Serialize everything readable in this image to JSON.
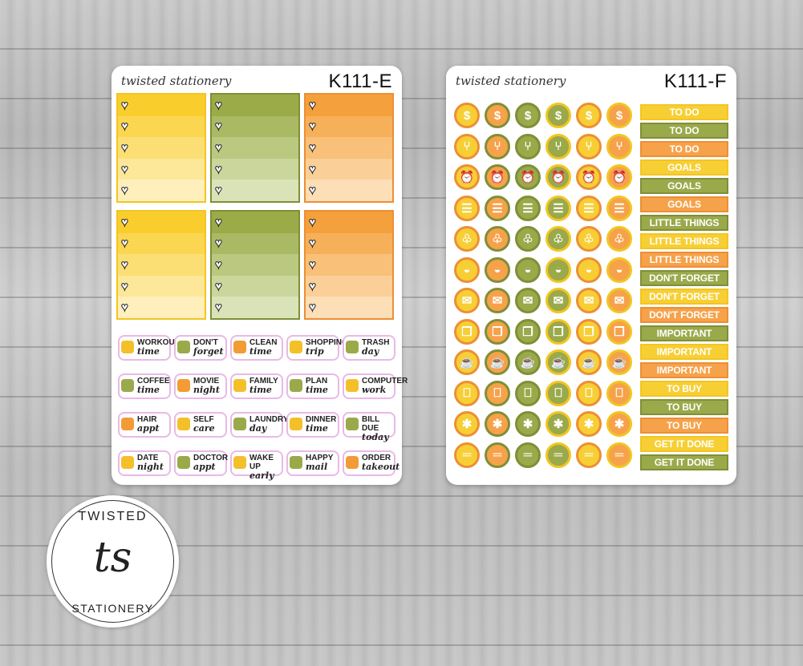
{
  "sheet_e": {
    "brand": "twisted stationery",
    "code": "K111-E",
    "boxes": [
      {
        "color": "yellow"
      },
      {
        "color": "green"
      },
      {
        "color": "orange"
      },
      {
        "color": "yellow"
      },
      {
        "color": "green"
      },
      {
        "color": "orange"
      }
    ],
    "chips": [
      {
        "bold": "WORKOUT",
        "script": "time",
        "icon": "dumbbell-icon"
      },
      {
        "bold": "DON'T",
        "script": "forget",
        "icon": "asterisk-icon"
      },
      {
        "bold": "CLEAN",
        "script": "time",
        "icon": "spray-bottle-icon"
      },
      {
        "bold": "SHOPPING",
        "script": "trip",
        "icon": "shopping-bag-icon"
      },
      {
        "bold": "TRASH",
        "script": "day",
        "icon": "trash-icon"
      },
      {
        "bold": "COFFEE",
        "script": "time",
        "icon": "coffee-cup-icon"
      },
      {
        "bold": "MOVIE",
        "script": "night",
        "icon": "clapperboard-icon"
      },
      {
        "bold": "FAMILY",
        "script": "time",
        "icon": "heart-icon"
      },
      {
        "bold": "PLAN",
        "script": "time",
        "icon": "planner-icon"
      },
      {
        "bold": "COMPUTER",
        "script": "work",
        "icon": "laptop-icon"
      },
      {
        "bold": "HAIR",
        "script": "appt",
        "icon": "scissors-icon"
      },
      {
        "bold": "SELF",
        "script": "care",
        "icon": "face-mask-icon"
      },
      {
        "bold": "LAUNDRY",
        "script": "day",
        "icon": "hanger-icon"
      },
      {
        "bold": "DINNER",
        "script": "time",
        "icon": "utensils-icon"
      },
      {
        "bold": "BILL DUE",
        "script": "today",
        "icon": "money-icon"
      },
      {
        "bold": "DATE",
        "script": "night",
        "icon": "champagne-icon"
      },
      {
        "bold": "DOCTOR",
        "script": "appt",
        "icon": "stethoscope-icon"
      },
      {
        "bold": "WAKE UP",
        "script": "early",
        "icon": "alarm-clock-icon"
      },
      {
        "bold": "HAPPY",
        "script": "mail",
        "icon": "package-icon"
      },
      {
        "bold": "ORDER",
        "script": "takeout",
        "icon": "takeout-box-icon"
      }
    ]
  },
  "sheet_f": {
    "brand": "twisted stationery",
    "code": "K111-F",
    "icon_rows": [
      {
        "icon": "dollar-icon",
        "glyph": "$"
      },
      {
        "icon": "fork-knife-icon",
        "glyph": "⑂"
      },
      {
        "icon": "alarm-clock-icon",
        "glyph": "⏰"
      },
      {
        "icon": "shopping-cart-icon",
        "glyph": "☰"
      },
      {
        "icon": "spray-bottle-icon",
        "glyph": "♧"
      },
      {
        "icon": "washer-icon",
        "glyph": "◒"
      },
      {
        "icon": "envelope-icon",
        "glyph": "✉"
      },
      {
        "icon": "gift-icon",
        "glyph": "❒"
      },
      {
        "icon": "coffee-cup-icon",
        "glyph": "☕"
      },
      {
        "icon": "trash-can-icon",
        "glyph": "⎕"
      },
      {
        "icon": "asterisk-icon",
        "glyph": "✱"
      },
      {
        "icon": "dumbbell-icon",
        "glyph": "═"
      }
    ],
    "labels": [
      {
        "text": "TO DO",
        "color": "yellow"
      },
      {
        "text": "TO DO",
        "color": "green"
      },
      {
        "text": "TO DO",
        "color": "orange"
      },
      {
        "text": "GOALS",
        "color": "yellow"
      },
      {
        "text": "GOALS",
        "color": "green"
      },
      {
        "text": "GOALS",
        "color": "orange"
      },
      {
        "text": "LITTLE THINGS",
        "color": "green"
      },
      {
        "text": "LITTLE THINGS",
        "color": "yellow"
      },
      {
        "text": "LITTLE THINGS",
        "color": "orange"
      },
      {
        "text": "DON'T FORGET",
        "color": "green"
      },
      {
        "text": "DON'T FORGET",
        "color": "yellow"
      },
      {
        "text": "DON'T FORGET",
        "color": "orange"
      },
      {
        "text": "IMPORTANT",
        "color": "green"
      },
      {
        "text": "IMPORTANT",
        "color": "yellow"
      },
      {
        "text": "IMPORTANT",
        "color": "orange"
      },
      {
        "text": "TO BUY",
        "color": "yellow"
      },
      {
        "text": "TO BUY",
        "color": "green"
      },
      {
        "text": "TO BUY",
        "color": "orange"
      },
      {
        "text": "GET IT DONE",
        "color": "yellow"
      },
      {
        "text": "GET IT DONE",
        "color": "green"
      }
    ]
  },
  "logo": {
    "top": "TWISTED",
    "monogram": "ts",
    "bottom": "STATIONERY"
  },
  "colors": {
    "yellow": "#f7cf35",
    "yellow_border": "#f2c522",
    "green": "#9aa94a",
    "green_border": "#7f8f36",
    "orange": "#f6a24a",
    "orange_border": "#ec8f35",
    "chip_outline": "#e9b9e5"
  }
}
